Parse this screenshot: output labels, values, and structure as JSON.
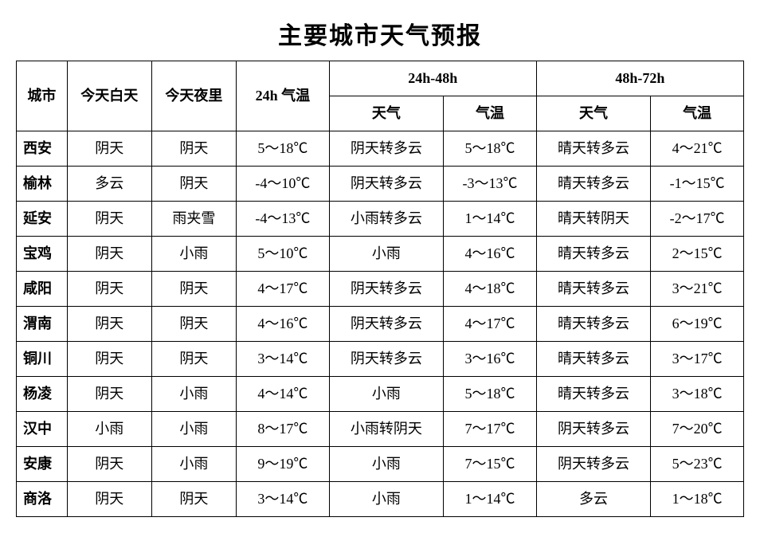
{
  "title": "主要城市天气预报",
  "header": {
    "city": "城市",
    "today_day": "今天白天",
    "today_night": "今天夜里",
    "temp24": "24h 气温",
    "period1": "24h-48h",
    "period2": "48h-72h",
    "weather": "天气",
    "temp": "气温"
  },
  "rows": [
    {
      "city": "西安",
      "day": "阴天",
      "night": "阴天",
      "t24": "5～18℃",
      "w1": "阴天转多云",
      "t1": "5～18℃",
      "w2": "晴天转多云",
      "t2": "4～21℃"
    },
    {
      "city": "榆林",
      "day": "多云",
      "night": "阴天",
      "t24": "-4～10℃",
      "w1": "阴天转多云",
      "t1": "-3～13℃",
      "w2": "晴天转多云",
      "t2": "-1～15℃"
    },
    {
      "city": "延安",
      "day": "阴天",
      "night": "雨夹雪",
      "t24": "-4～13℃",
      "w1": "小雨转多云",
      "t1": "1～14℃",
      "w2": "晴天转阴天",
      "t2": "-2～17℃"
    },
    {
      "city": "宝鸡",
      "day": "阴天",
      "night": "小雨",
      "t24": "5～10℃",
      "w1": "小雨",
      "t1": "4～16℃",
      "w2": "晴天转多云",
      "t2": "2～15℃"
    },
    {
      "city": "咸阳",
      "day": "阴天",
      "night": "阴天",
      "t24": "4～17℃",
      "w1": "阴天转多云",
      "t1": "4～18℃",
      "w2": "晴天转多云",
      "t2": "3～21℃"
    },
    {
      "city": "渭南",
      "day": "阴天",
      "night": "阴天",
      "t24": "4～16℃",
      "w1": "阴天转多云",
      "t1": "4～17℃",
      "w2": "晴天转多云",
      "t2": "6～19℃"
    },
    {
      "city": "铜川",
      "day": "阴天",
      "night": "阴天",
      "t24": "3～14℃",
      "w1": "阴天转多云",
      "t1": "3～16℃",
      "w2": "晴天转多云",
      "t2": "3～17℃"
    },
    {
      "city": "杨凌",
      "day": "阴天",
      "night": "小雨",
      "t24": "4～14℃",
      "w1": "小雨",
      "t1": "5～18℃",
      "w2": "晴天转多云",
      "t2": "3～18℃"
    },
    {
      "city": "汉中",
      "day": "小雨",
      "night": "小雨",
      "t24": "8～17℃",
      "w1": "小雨转阴天",
      "t1": "7～17℃",
      "w2": "阴天转多云",
      "t2": "7～20℃"
    },
    {
      "city": "安康",
      "day": "阴天",
      "night": "小雨",
      "t24": "9～19℃",
      "w1": "小雨",
      "t1": "7～15℃",
      "w2": "阴天转多云",
      "t2": "5～23℃"
    },
    {
      "city": "商洛",
      "day": "阴天",
      "night": "阴天",
      "t24": "3～14℃",
      "w1": "小雨",
      "t1": "1～14℃",
      "w2": "多云",
      "t2": "1～18℃"
    }
  ]
}
